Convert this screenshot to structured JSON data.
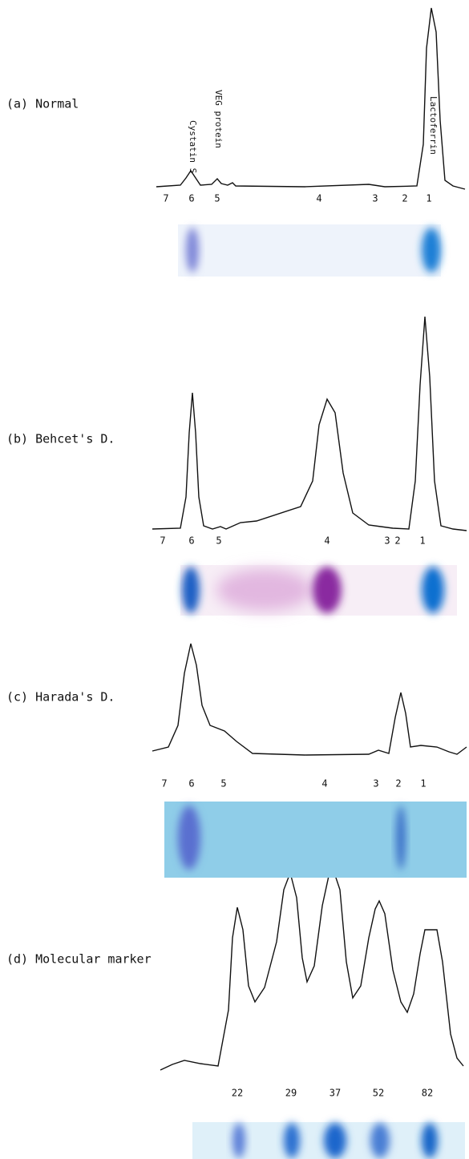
{
  "panels": [
    {
      "label": "(a) Normal",
      "peak_labels": [
        "Cystatin S",
        "VEG protein",
        "Lactoferrin"
      ],
      "lanes": [
        "7",
        "6",
        "5",
        "4",
        "3",
        "2",
        "1"
      ]
    },
    {
      "label": "(b) Behcet's D.",
      "lanes": [
        "7",
        "6",
        "5",
        "4",
        "3",
        "2",
        "1"
      ]
    },
    {
      "label": "(c) Harada's D.",
      "lanes": [
        "7",
        "6",
        "5",
        "4",
        "3",
        "2",
        "1"
      ]
    },
    {
      "label": "(d) Molecular marker",
      "lanes": [
        "22",
        "29",
        "37",
        "52",
        "82"
      ]
    }
  ]
}
